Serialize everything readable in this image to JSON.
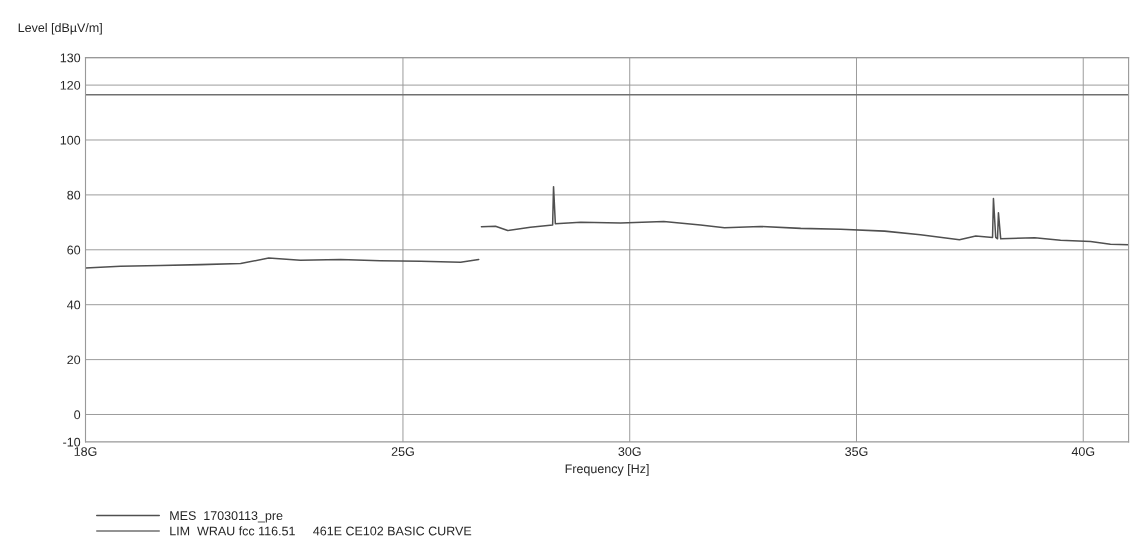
{
  "chart_data": {
    "type": "line",
    "xlabel": "Frequency [Hz]",
    "ylabel": "Level [dBµV/m]",
    "xlim": [
      18,
      41
    ],
    "ylim": [
      -10,
      130
    ],
    "xticks": [
      {
        "value": 18,
        "label": "18G"
      },
      {
        "value": 25,
        "label": "25G"
      },
      {
        "value": 30,
        "label": "30G"
      },
      {
        "value": 35,
        "label": "35G"
      },
      {
        "value": 40,
        "label": "40G"
      }
    ],
    "yticks": [
      -10,
      0,
      20,
      40,
      60,
      80,
      100,
      120,
      130
    ],
    "grid": true,
    "legend": "bottom left",
    "marker": "none",
    "line_style": "solid",
    "series": [
      {
        "name": "MES  17030113_pre",
        "color": "#505050",
        "x": [
          18.0,
          18.77,
          19.65,
          20.54,
          21.42,
          22.04,
          22.74,
          23.62,
          24.5,
          25.39,
          26.27,
          26.67,
          26.7,
          26.73,
          27.04,
          27.31,
          27.81,
          28.3,
          28.32,
          28.36,
          28.92,
          29.8,
          30.75,
          31.56,
          32.09,
          32.88,
          33.77,
          34.65,
          35.62,
          36.41,
          37.27,
          37.63,
          38.0,
          38.02,
          38.07,
          38.11,
          38.13,
          38.18,
          38.93,
          39.5,
          40.16,
          40.6,
          41.0
        ],
        "values": [
          53.4,
          54,
          54.3,
          54.6,
          55,
          57,
          56.2,
          56.5,
          56,
          55.8,
          55.5,
          56.5,
          null,
          68.4,
          68.6,
          67,
          68.2,
          69,
          83,
          69.5,
          70,
          69.8,
          70.3,
          69,
          68,
          68.5,
          67.8,
          67.5,
          66.8,
          65.5,
          63.7,
          65,
          64.5,
          78.7,
          64.5,
          64,
          73.5,
          64,
          64.4,
          63.5,
          63,
          62,
          61.8
        ]
      },
      {
        "name": "LIM  WRAU fcc 116.51     461E CE102 BASIC CURVE",
        "color": "#707070",
        "x": [
          18,
          41
        ],
        "values": [
          116.51,
          116.51
        ]
      }
    ]
  }
}
